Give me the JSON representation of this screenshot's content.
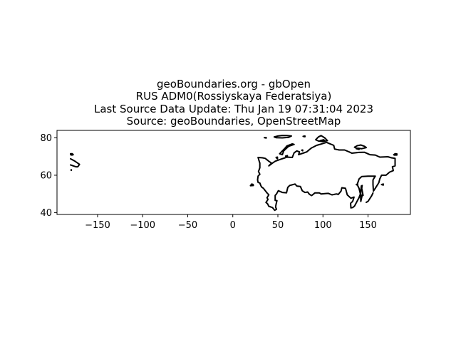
{
  "chart_data": {
    "type": "map",
    "title_lines": [
      "geoBoundaries.org - gbOpen",
      "RUS ADM0(Rossiyskaya Federatsiya)",
      "Last Source Data Update: Thu Jan 19 07:31:04 2023",
      "Source: geoBoundaries, OpenStreetMap"
    ],
    "xlim": [
      -195,
      197
    ],
    "ylim": [
      39,
      84
    ],
    "x_ticks": [
      -150,
      -100,
      -50,
      0,
      50,
      100,
      150
    ],
    "x_tick_labels": [
      "−150",
      "−100",
      "−50",
      "0",
      "50",
      "100",
      "150"
    ],
    "y_ticks": [
      40,
      60,
      80
    ],
    "y_tick_labels": [
      "40",
      "60",
      "80"
    ],
    "grid": false,
    "outline_color": "#000000",
    "shapes": [
      {
        "name": "mainland",
        "points": [
          [
            28,
            69.5
          ],
          [
            33,
            69.3
          ],
          [
            36,
            69
          ],
          [
            40,
            67.5
          ],
          [
            43,
            66.5
          ],
          [
            40,
            65
          ],
          [
            44,
            66.5
          ],
          [
            47,
            67.5
          ],
          [
            53,
            68.5
          ],
          [
            58,
            69.3
          ],
          [
            60,
            69.7
          ],
          [
            66,
            69.5
          ],
          [
            68,
            72
          ],
          [
            71,
            73
          ],
          [
            74,
            72.5
          ],
          [
            73,
            71
          ],
          [
            79,
            72
          ],
          [
            82,
            72.5
          ],
          [
            87,
            74.5
          ],
          [
            93,
            76
          ],
          [
            100,
            77
          ],
          [
            104,
            77.6
          ],
          [
            107,
            77
          ],
          [
            112,
            76
          ],
          [
            113,
            74
          ],
          [
            118,
            73.5
          ],
          [
            124,
            73.5
          ],
          [
            129,
            72.5
          ],
          [
            132,
            71.8
          ],
          [
            140,
            72.2
          ],
          [
            146,
            72.3
          ],
          [
            152,
            71
          ],
          [
            158,
            70.8
          ],
          [
            163,
            69.7
          ],
          [
            168,
            69.8
          ],
          [
            172,
            69.9
          ],
          [
            176,
            69.3
          ],
          [
            180,
            69
          ],
          [
            180,
            65
          ],
          [
            177,
            64.5
          ],
          [
            178,
            62.5
          ],
          [
            174,
            61.7
          ],
          [
            170,
            60
          ],
          [
            165,
            60
          ],
          [
            163,
            58
          ],
          [
            162,
            56
          ],
          [
            158,
            53
          ],
          [
            156,
            51.5
          ],
          [
            155.5,
            55
          ],
          [
            155.5,
            57.5
          ],
          [
            158,
            59.5
          ],
          [
            154,
            59.5
          ],
          [
            150,
            59.5
          ],
          [
            143,
            59.3
          ],
          [
            140,
            58
          ],
          [
            138,
            55
          ],
          [
            140,
            53
          ],
          [
            141.5,
            50
          ],
          [
            140,
            48
          ],
          [
            135,
            43.5
          ],
          [
            133,
            42.7
          ],
          [
            131,
            42.5
          ],
          [
            130.7,
            45
          ],
          [
            133,
            46
          ],
          [
            134.5,
            48.3
          ],
          [
            131,
            47.7
          ],
          [
            127,
            49.5
          ],
          [
            125,
            53
          ],
          [
            121,
            53.3
          ],
          [
            120,
            51.5
          ],
          [
            117,
            49.7
          ],
          [
            115,
            50
          ],
          [
            110,
            49.5
          ],
          [
            106,
            50.3
          ],
          [
            103,
            50.2
          ],
          [
            98,
            50
          ],
          [
            96,
            50.5
          ],
          [
            91,
            50.5
          ],
          [
            87.5,
            49.1
          ],
          [
            85,
            49.8
          ],
          [
            83,
            51
          ],
          [
            80,
            50.8
          ],
          [
            77,
            51.7
          ],
          [
            75,
            54
          ],
          [
            71,
            54.2
          ],
          [
            69,
            55.3
          ],
          [
            63,
            54.5
          ],
          [
            61,
            53.5
          ],
          [
            59.6,
            50.6
          ],
          [
            55,
            50.8
          ],
          [
            50.5,
            51.7
          ],
          [
            48.5,
            50
          ],
          [
            47,
            49.2
          ],
          [
            47,
            46.5
          ],
          [
            49,
            46.4
          ],
          [
            48,
            44.5
          ],
          [
            47.5,
            43
          ],
          [
            48.5,
            41.8
          ],
          [
            46.5,
            41.2
          ],
          [
            44,
            42.7
          ],
          [
            40,
            43.4
          ],
          [
            38.5,
            44.8
          ],
          [
            36.8,
            45.4
          ],
          [
            39,
            47
          ],
          [
            38,
            48
          ],
          [
            40,
            49.5
          ],
          [
            38,
            50.5
          ],
          [
            35.5,
            52
          ],
          [
            34,
            53
          ],
          [
            32,
            53.7
          ],
          [
            31,
            54.5
          ],
          [
            30,
            55.8
          ],
          [
            28,
            56.2
          ],
          [
            27.5,
            57.5
          ],
          [
            28,
            59.5
          ],
          [
            30,
            60.5
          ],
          [
            28.5,
            62
          ],
          [
            30,
            64
          ],
          [
            30,
            66.5
          ],
          [
            29,
            68
          ],
          [
            28,
            69.5
          ]
        ]
      },
      {
        "name": "kaliningrad",
        "points": [
          [
            19.6,
            54.4
          ],
          [
            22.8,
            54.5
          ],
          [
            22.5,
            55.1
          ],
          [
            21,
            55.3
          ],
          [
            19.6,
            54.4
          ]
        ]
      },
      {
        "name": "sakhalin",
        "points": [
          [
            142,
            46
          ],
          [
            143.6,
            49.5
          ],
          [
            144.5,
            49.2
          ],
          [
            143,
            53
          ],
          [
            143.5,
            54.5
          ],
          [
            142.6,
            54.3
          ],
          [
            142,
            52
          ],
          [
            141.8,
            48
          ],
          [
            142,
            46
          ]
        ]
      },
      {
        "name": "kuril-islands",
        "points": [
          [
            148,
            45.5
          ],
          [
            150,
            46
          ],
          [
            152,
            47.5
          ],
          [
            154,
            49
          ],
          [
            155.5,
            50.5
          ]
        ]
      },
      {
        "name": "novaya-zemlya",
        "points": [
          [
            52,
            71.5
          ],
          [
            55,
            73
          ],
          [
            58,
            74.5
          ],
          [
            60,
            75.7
          ],
          [
            66,
            76.8
          ],
          [
            68,
            76.5
          ],
          [
            62,
            75.5
          ],
          [
            59,
            74.2
          ],
          [
            56.5,
            73
          ],
          [
            55,
            71
          ],
          [
            52,
            71.5
          ]
        ]
      },
      {
        "name": "franz-josef-land",
        "points": [
          [
            46,
            80.5
          ],
          [
            50,
            81
          ],
          [
            55,
            81.3
          ],
          [
            60,
            81.2
          ],
          [
            65,
            81
          ],
          [
            62,
            80.3
          ],
          [
            55,
            80
          ],
          [
            48,
            80.1
          ],
          [
            46,
            80.5
          ]
        ]
      },
      {
        "name": "severnaya-zemlya",
        "points": [
          [
            92,
            79
          ],
          [
            95,
            80.5
          ],
          [
            98,
            81.2
          ],
          [
            102,
            80
          ],
          [
            105,
            78.5
          ],
          [
            100,
            78
          ],
          [
            95,
            78.3
          ],
          [
            92,
            79
          ]
        ]
      },
      {
        "name": "new-siberian-islands",
        "points": [
          [
            135,
            75
          ],
          [
            138,
            75.8
          ],
          [
            142,
            76.2
          ],
          [
            146,
            75.5
          ],
          [
            148,
            74.8
          ],
          [
            143,
            74.2
          ],
          [
            137,
            74.5
          ],
          [
            135,
            75
          ]
        ]
      },
      {
        "name": "wrangel-island",
        "points": [
          [
            178.5,
            71
          ],
          [
            180,
            71.5
          ],
          [
            182,
            71.4
          ],
          [
            182,
            70.8
          ],
          [
            179,
            70.8
          ],
          [
            178.5,
            71
          ]
        ]
      },
      {
        "name": "chukotka-west",
        "points": [
          [
            -180,
            68.8
          ],
          [
            -175,
            67.5
          ],
          [
            -172,
            66.5
          ],
          [
            -170,
            65.8
          ],
          [
            -172,
            64.5
          ],
          [
            -174,
            64.5
          ],
          [
            -177,
            65
          ],
          [
            -180,
            65.5
          ]
        ]
      },
      {
        "name": "wrangel-west",
        "points": [
          [
            -180,
            71.5
          ],
          [
            -178,
            71.5
          ],
          [
            -177,
            71
          ],
          [
            -178.5,
            70.8
          ],
          [
            -180,
            71
          ]
        ]
      },
      {
        "name": "kolguev",
        "points": [
          [
            48,
            69.5
          ],
          [
            49.5,
            69.7
          ],
          [
            49.5,
            68.8
          ],
          [
            48,
            69.5
          ]
        ]
      },
      {
        "name": "vaygach",
        "points": [
          [
            58.5,
            70.2
          ],
          [
            60.5,
            70.5
          ],
          [
            60.5,
            69.8
          ],
          [
            58.5,
            70.2
          ]
        ]
      },
      {
        "name": "vilkitsky",
        "points": [
          [
            76.5,
            73.4
          ],
          [
            77.5,
            73.5
          ],
          [
            77.5,
            73.1
          ],
          [
            76.5,
            73.4
          ]
        ]
      },
      {
        "name": "bolshevik",
        "points": [
          [
            97,
            78.5
          ],
          [
            101,
            79
          ],
          [
            102,
            78.3
          ],
          [
            97,
            78.5
          ]
        ]
      },
      {
        "name": "ushakov",
        "points": [
          [
            78,
            80.8
          ],
          [
            80,
            81
          ],
          [
            80,
            80.6
          ],
          [
            78,
            80.8
          ]
        ]
      },
      {
        "name": "victoria",
        "points": [
          [
            35,
            80.1
          ],
          [
            37,
            80.2
          ],
          [
            37,
            79.9
          ],
          [
            35,
            80.1
          ]
        ]
      },
      {
        "name": "kotelny-south",
        "points": [
          [
            137,
            74.2
          ],
          [
            140,
            74.4
          ],
          [
            140,
            73.8
          ],
          [
            137,
            74.2
          ]
        ]
      },
      {
        "name": "bering-island",
        "points": [
          [
            165,
            55
          ],
          [
            167,
            55.3
          ],
          [
            167,
            54.7
          ],
          [
            165,
            55
          ]
        ]
      },
      {
        "name": "shantar",
        "points": [
          [
            137,
            55
          ],
          [
            138.5,
            55.2
          ],
          [
            138.5,
            54.6
          ],
          [
            137,
            55
          ]
        ]
      },
      {
        "name": "chukotka-dot",
        "points": [
          [
            -179.5,
            62.8
          ],
          [
            -179,
            62.9
          ],
          [
            -179,
            62.6
          ],
          [
            -179.5,
            62.8
          ]
        ]
      }
    ]
  }
}
